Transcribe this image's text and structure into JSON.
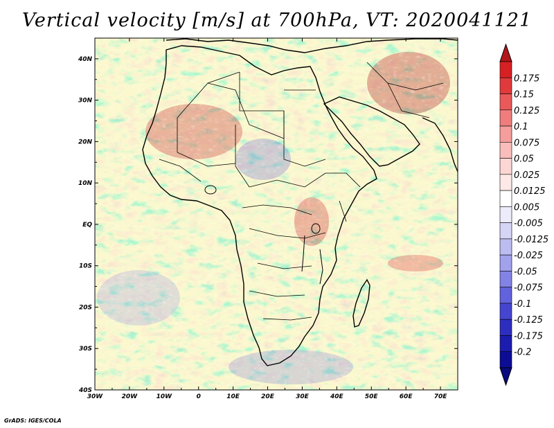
{
  "title": "Vertical velocity [m/s] at 700hPa, VT: 2020041121",
  "credit": "GrADS: IGES/COLA",
  "lon_labels": [
    "30W",
    "20W",
    "10W",
    "0",
    "10E",
    "20E",
    "30E",
    "40E",
    "50E",
    "60E",
    "70E"
  ],
  "lat_labels": [
    "40N",
    "30N",
    "20N",
    "10N",
    "EQ",
    "10S",
    "20S",
    "30S",
    "40S"
  ],
  "domain": {
    "lon_range": [
      -30,
      75
    ],
    "lat_range": [
      -40,
      45
    ]
  },
  "colorbar": {
    "labels": [
      "0.175",
      "0.15",
      "0.125",
      "0.1",
      "0.075",
      "0.05",
      "0.025",
      "0.0125",
      "0.005",
      "-0.005",
      "-0.0125",
      "-0.025",
      "-0.05",
      "-0.075",
      "-0.1",
      "-0.125",
      "-0.175",
      "-0.2"
    ],
    "colors": [
      "#d62023",
      "#e03a3c",
      "#e9595a",
      "#f07d7d",
      "#f59e9d",
      "#f9bdbb",
      "#fcd6d4",
      "#fde9e8",
      "#ffffff",
      "#ececfb",
      "#d5d5f6",
      "#bcbcf1",
      "#a1a1ec",
      "#8383e5",
      "#6262dc",
      "#4545cf",
      "#2d2dbf",
      "#1c1cae",
      "#0c0c95"
    ],
    "max_color": "#b0181b",
    "min_color": "#0a0a80"
  }
}
